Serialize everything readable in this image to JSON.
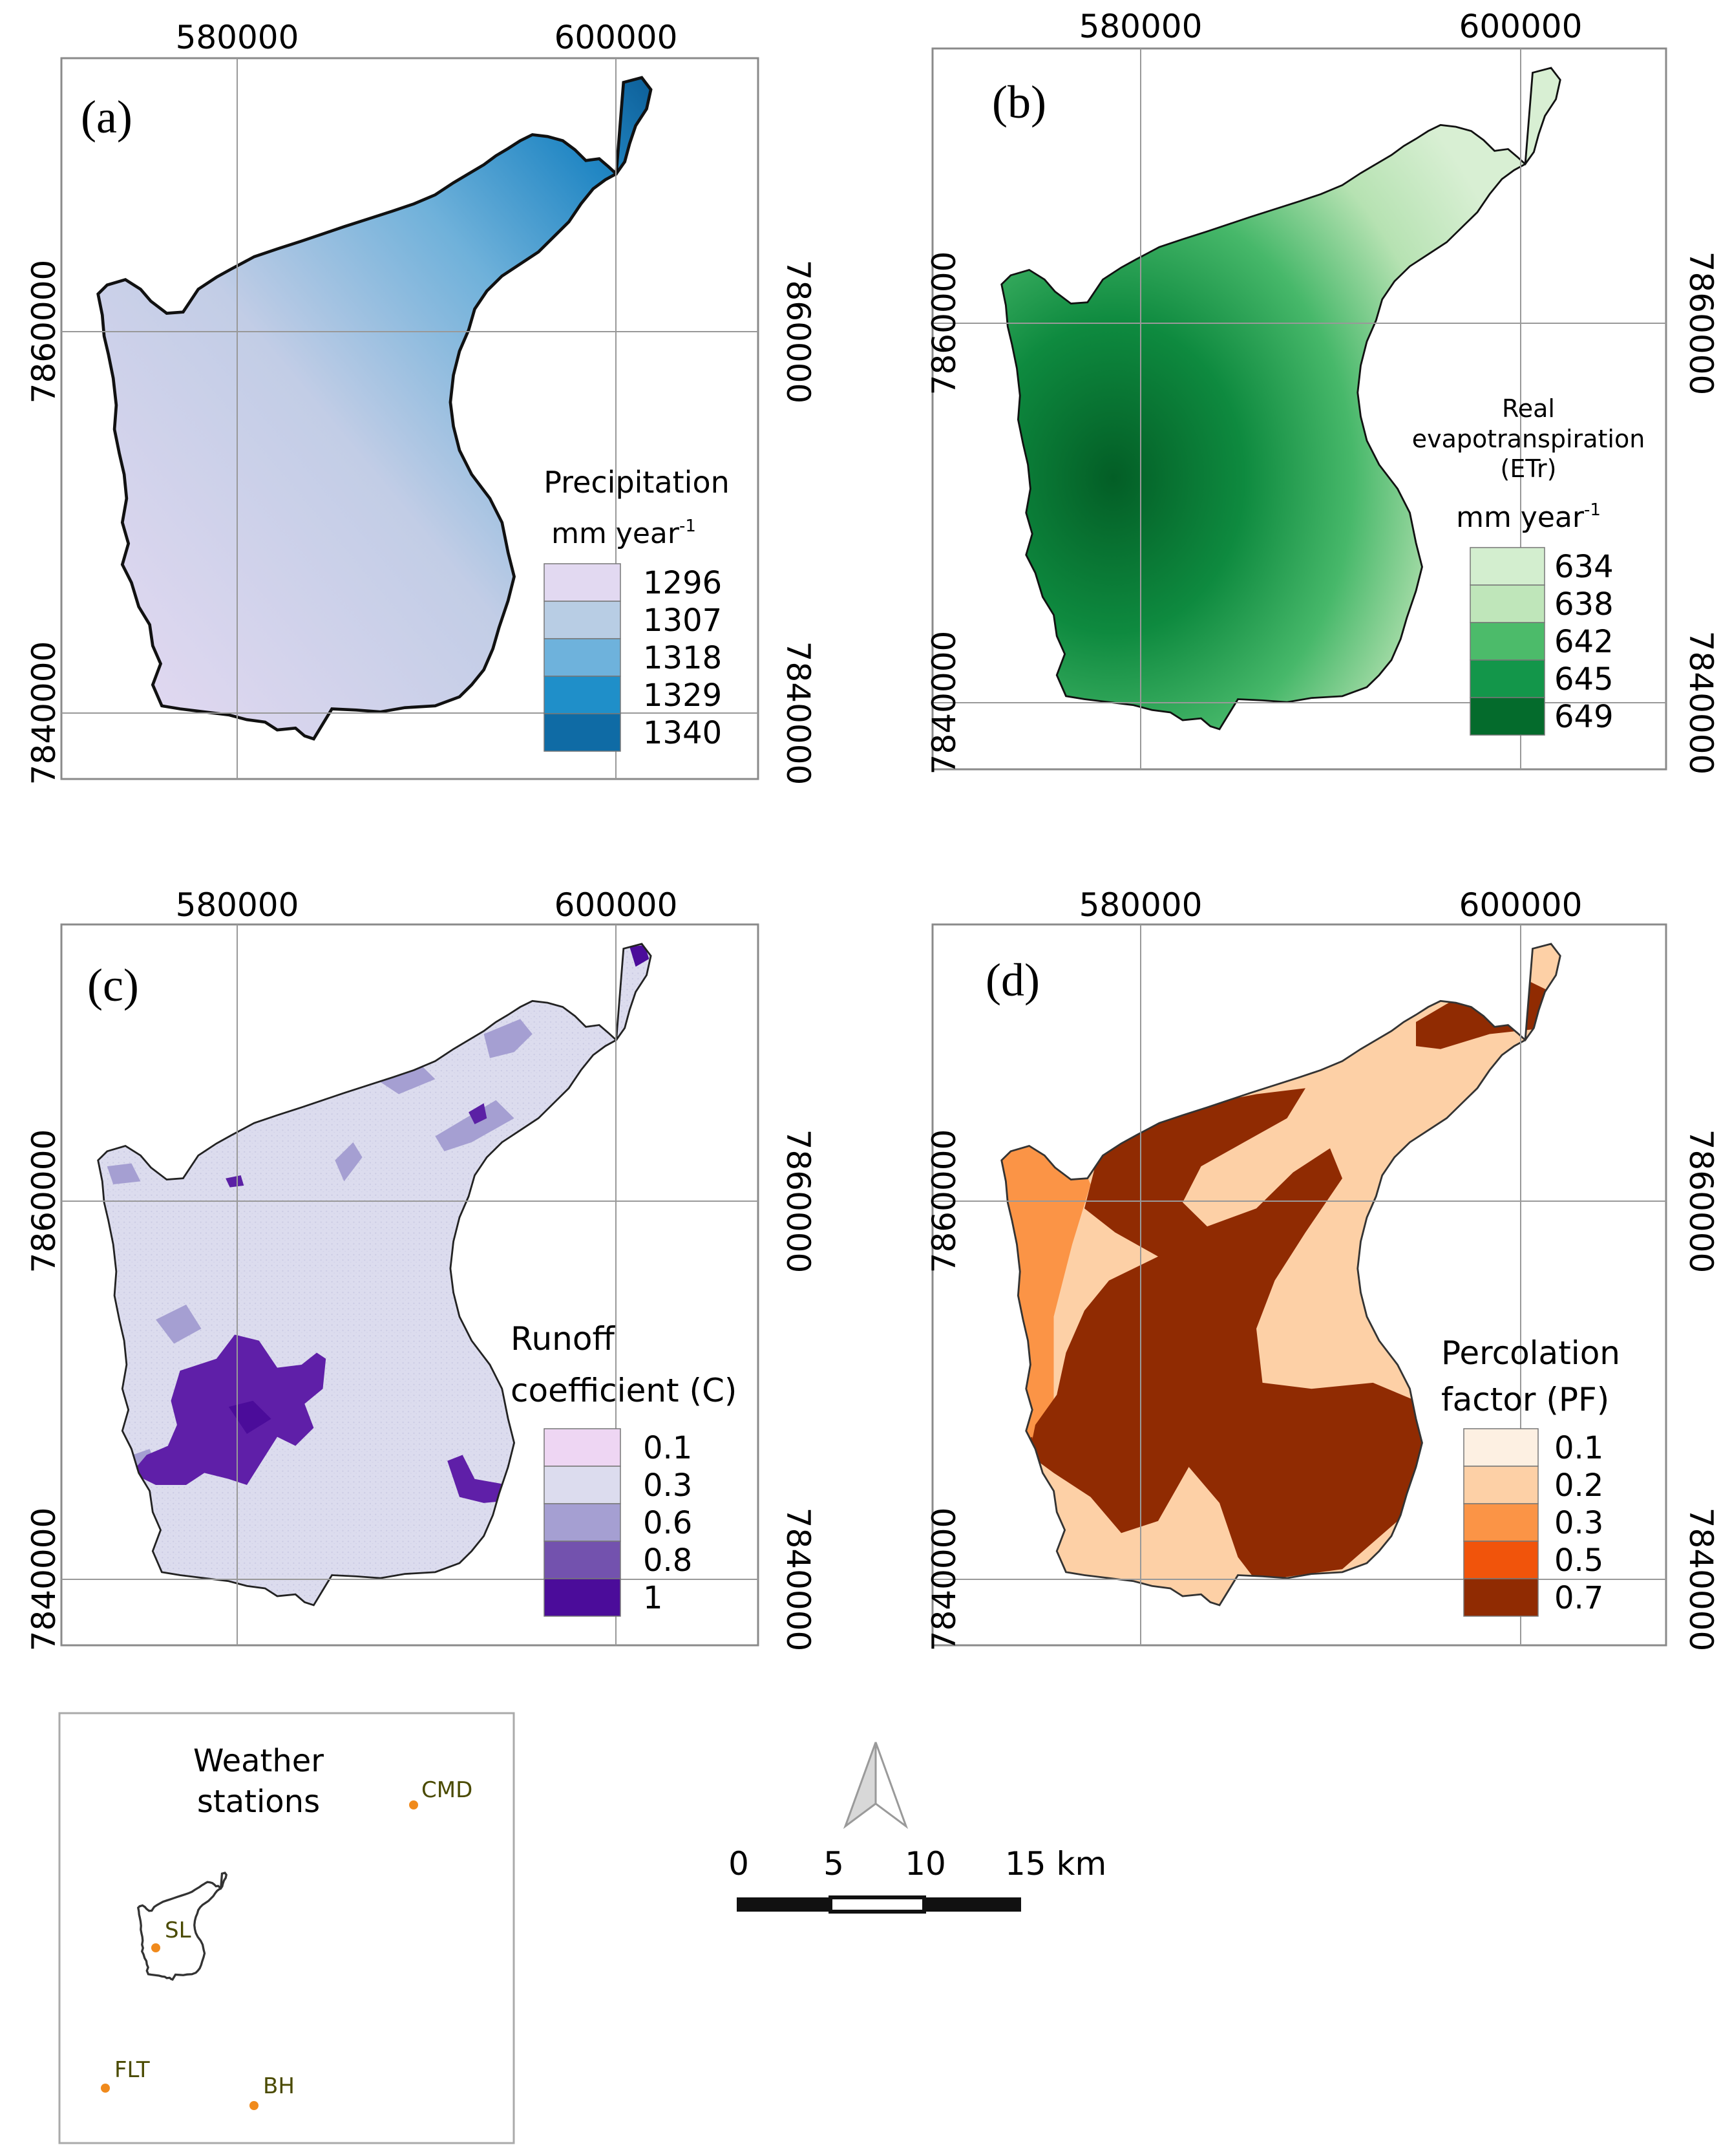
{
  "panels": [
    {
      "id": "a",
      "label": "(a)",
      "coords": {
        "x_top": [
          "580000",
          "600000"
        ],
        "y_left": [
          "7860000",
          "7840000"
        ],
        "y_right": [
          "7860000",
          "7840000"
        ]
      },
      "legend": {
        "title_lines": [
          "Precipitation"
        ],
        "unit": "mm year",
        "unit_sup": "-1",
        "classes": [
          {
            "label": "1296",
            "color": "#e2d9f1"
          },
          {
            "label": "1307",
            "color": "#b8cde4"
          },
          {
            "label": "1318",
            "color": "#6eb2dc"
          },
          {
            "label": "1329",
            "color": "#1f8fc9"
          },
          {
            "label": "1340",
            "color": "#0f6ba5"
          }
        ]
      }
    },
    {
      "id": "b",
      "label": "(b)",
      "coords": {
        "x_top": [
          "580000",
          "600000"
        ],
        "y_left": [
          "7860000",
          "7840000"
        ],
        "y_right": [
          "7860000",
          "7840000"
        ]
      },
      "legend": {
        "title_lines": [
          "Real",
          "evapotranspiration",
          "(ETr)"
        ],
        "unit": "mm year",
        "unit_sup": "-1",
        "classes": [
          {
            "label": "634",
            "color": "#d3eecf"
          },
          {
            "label": "638",
            "color": "#bfe6ba"
          },
          {
            "label": "642",
            "color": "#4cbb6a"
          },
          {
            "label": "645",
            "color": "#13964a"
          },
          {
            "label": "649",
            "color": "#046b2c"
          }
        ]
      }
    },
    {
      "id": "c",
      "label": "(c)",
      "coords": {
        "x_top": [
          "580000",
          "600000"
        ],
        "y_left": [
          "7860000",
          "7840000"
        ],
        "y_right": [
          "7860000",
          "7840000"
        ]
      },
      "legend": {
        "title_lines": [
          "Runoff",
          "coefficient (C)"
        ],
        "unit": "",
        "unit_sup": "",
        "classes": [
          {
            "label": "0.1",
            "color": "#eed6f3"
          },
          {
            "label": "0.3",
            "color": "#dcdcee"
          },
          {
            "label": "0.6",
            "color": "#a59fd2"
          },
          {
            "label": "0.8",
            "color": "#7352ae"
          },
          {
            "label": "1",
            "color": "#4b0c9a"
          }
        ]
      }
    },
    {
      "id": "d",
      "label": "(d)",
      "coords": {
        "x_top": [
          "580000",
          "600000"
        ],
        "y_left": [
          "7860000",
          "7840000"
        ],
        "y_right": [
          "7860000",
          "7840000"
        ]
      },
      "legend": {
        "title_lines": [
          "Percolation",
          "factor (PF)"
        ],
        "unit": "",
        "unit_sup": "",
        "classes": [
          {
            "label": "0.1",
            "color": "#fdf0e2"
          },
          {
            "label": "0.2",
            "color": "#fdd0a6"
          },
          {
            "label": "0.3",
            "color": "#fb9446"
          },
          {
            "label": "0.5",
            "color": "#f1540b"
          },
          {
            "label": "0.7",
            "color": "#902b02"
          }
        ]
      }
    }
  ],
  "inset": {
    "title_lines": [
      "Weather",
      "stations"
    ],
    "stations": [
      "CMD",
      "SL",
      "FLT",
      "BH"
    ],
    "station_color": "#f08a1c",
    "label_color": "#4a4a00"
  },
  "scalebar": {
    "ticks": [
      "0",
      "5",
      "10",
      "15 km"
    ]
  },
  "north_arrow": {
    "icon": "north-arrow-icon"
  }
}
